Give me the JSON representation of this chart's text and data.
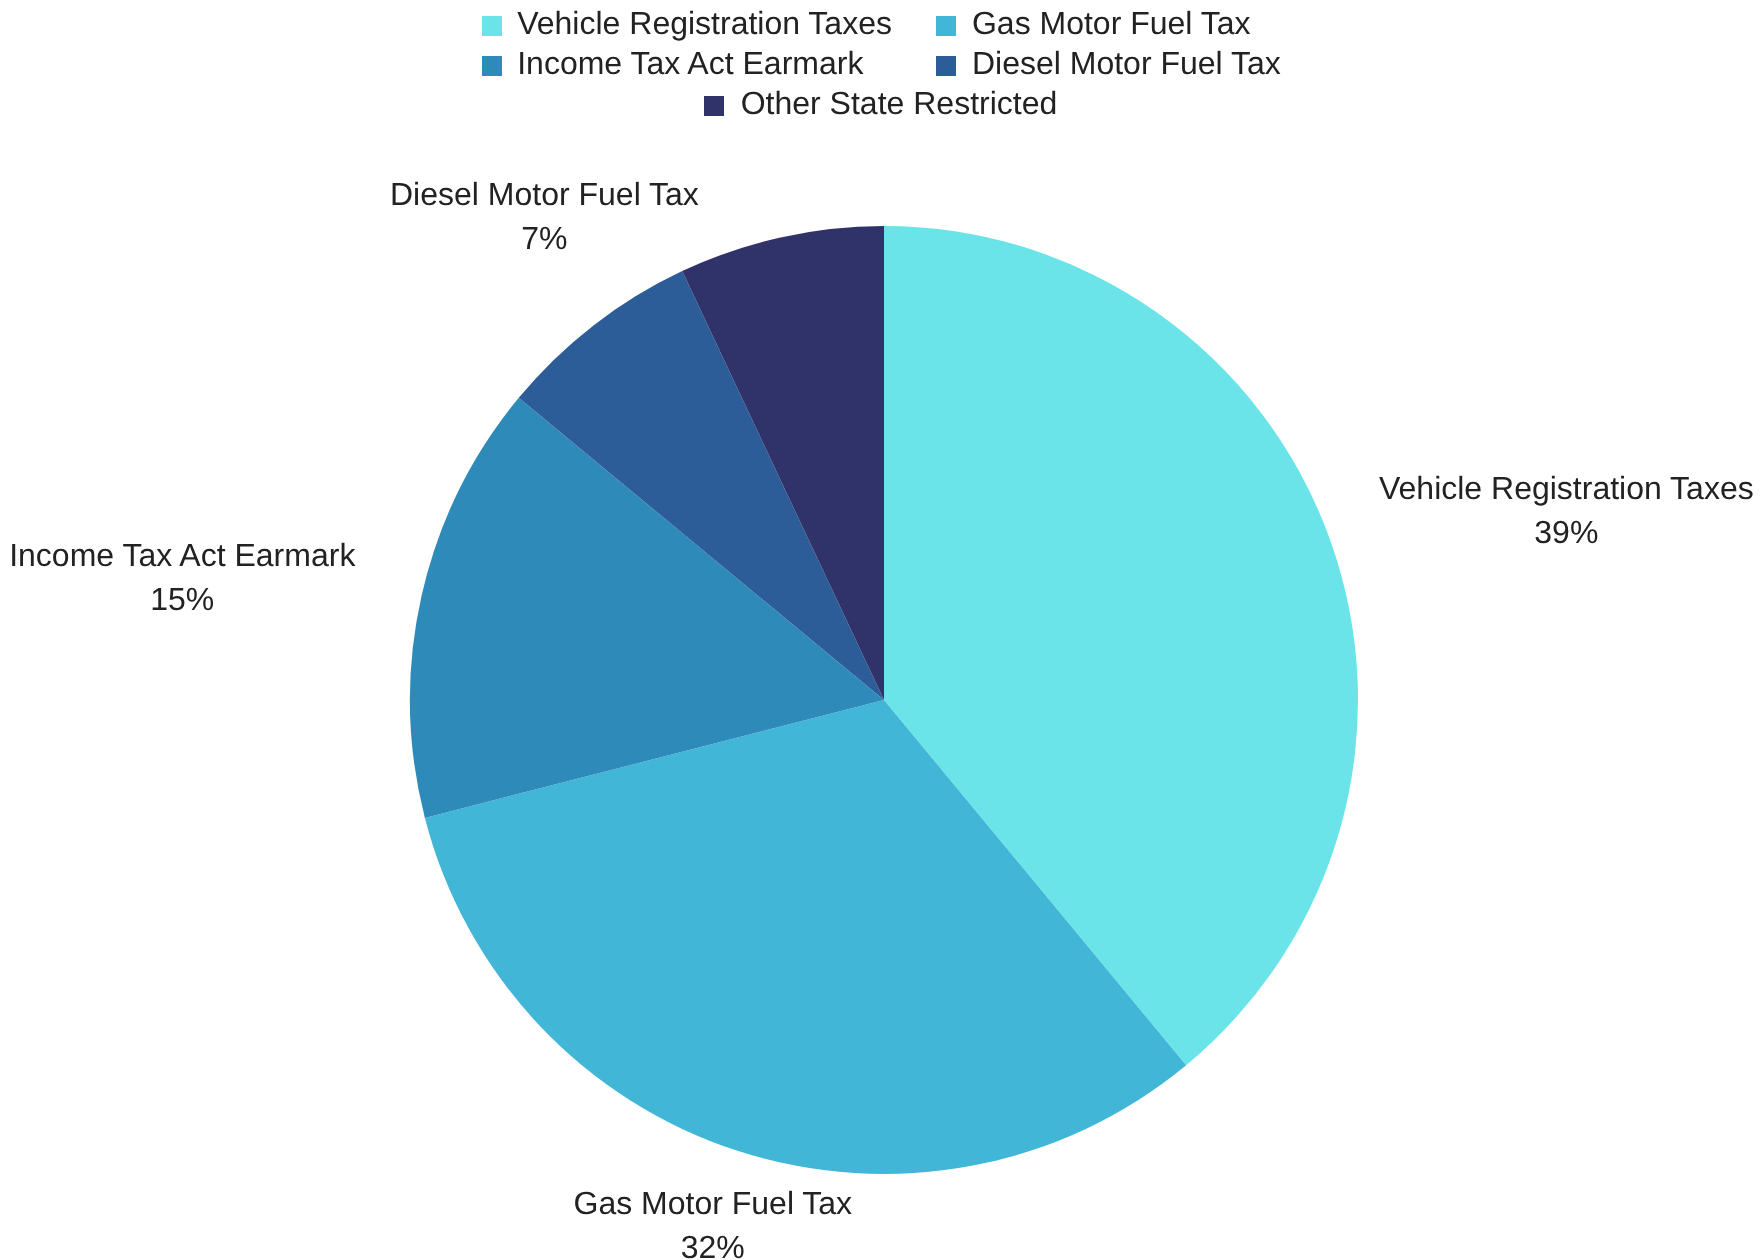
{
  "chart_data": {
    "type": "pie",
    "categories": [
      "Vehicle Registration Taxes",
      "Gas Motor Fuel Tax",
      "Income Tax Act Earmark",
      "Diesel Motor Fuel Tax",
      "Other State Restricted"
    ],
    "values": [
      39,
      32,
      15,
      7,
      7
    ],
    "colors": [
      "#6ae4e8",
      "#42b6d6",
      "#2e8ab8",
      "#2c5d98",
      "#2f3369"
    ],
    "value_labels": [
      "39%",
      "32%",
      "15%",
      "7%",
      null
    ],
    "legend": "top"
  }
}
